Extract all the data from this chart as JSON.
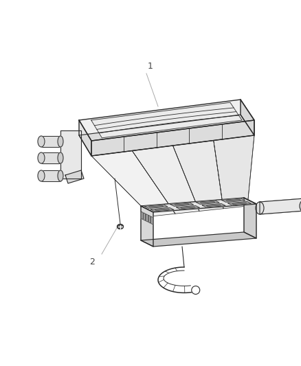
{
  "bg_color": "#ffffff",
  "line_color": "#2a2a2a",
  "light_line": "#555555",
  "fill_white": "#ffffff",
  "fill_light": "#f5f5f5",
  "fill_mid": "#e8e8e8",
  "fill_dark": "#d0d0d0",
  "callout_color": "#999999",
  "label_color": "#555555",
  "fig_width": 4.38,
  "fig_height": 5.33,
  "dpi": 100
}
